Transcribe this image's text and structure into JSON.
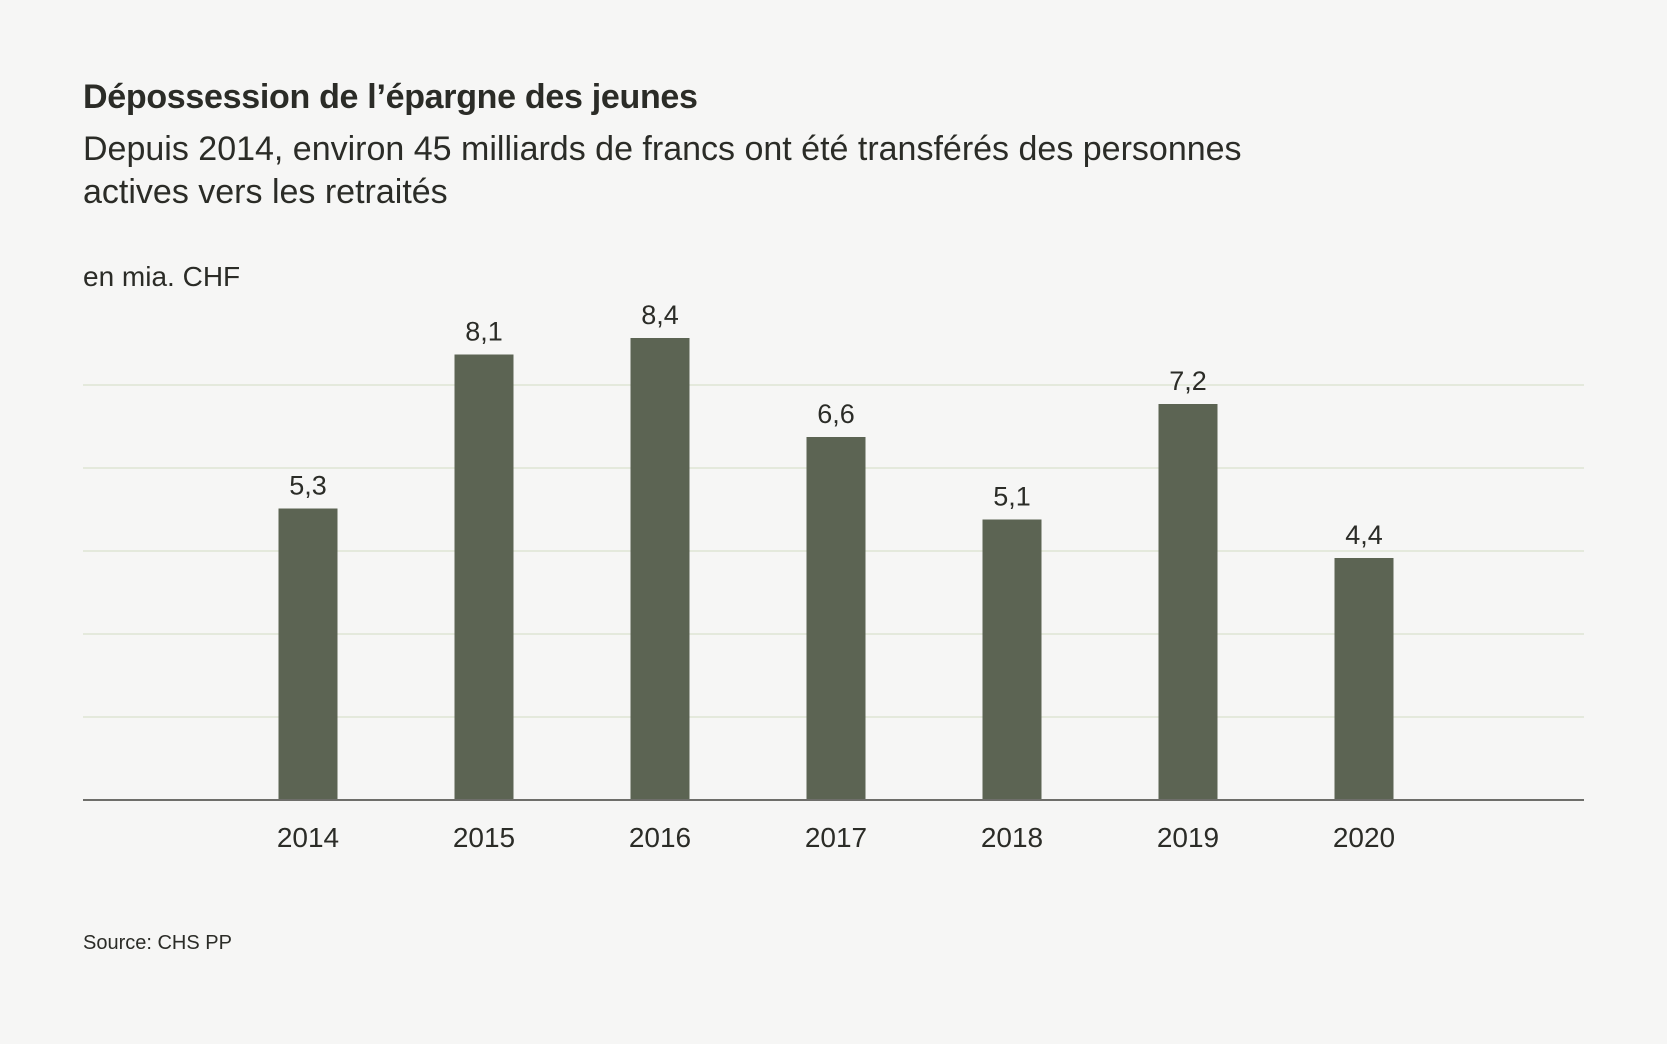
{
  "title": "Dépossession de l’épargne des jeunes",
  "subtitle": "Depuis 2014, environ 45 milliards de francs ont été transférés des personnes actives vers les retraités",
  "unit_label": "en mia. CHF",
  "source": "Source: CHS PP",
  "colors": {
    "bar": "#5c6453",
    "grid": "#d3dcc4",
    "axis": "#6e6e6a",
    "background": "#f6f6f5"
  },
  "chart_data": {
    "type": "bar",
    "title": "Dépossession de l’épargne des jeunes",
    "ylabel": "en mia. CHF",
    "xlabel": "",
    "categories": [
      "2014",
      "2015",
      "2016",
      "2017",
      "2018",
      "2019",
      "2020"
    ],
    "values": [
      5.3,
      8.1,
      8.4,
      6.6,
      5.1,
      7.2,
      4.4
    ],
    "value_labels": [
      "5,3",
      "8,1",
      "8,4",
      "6,6",
      "5,1",
      "7,2",
      "4,4"
    ],
    "ylim": [
      0,
      9
    ],
    "grid": true,
    "legend": "none"
  }
}
